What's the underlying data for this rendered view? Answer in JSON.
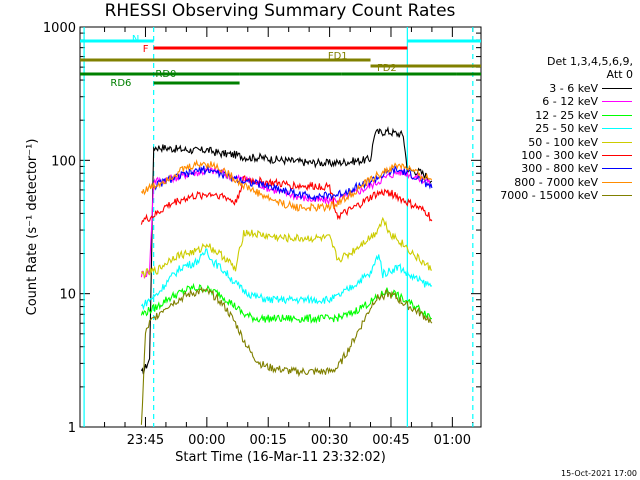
{
  "chart_data": {
    "type": "line",
    "title": "RHESSI Observing Summary Count Rates",
    "xlabel": "Start Time (16-Mar-11 23:32:02)",
    "ylabel": "Count Rate (s⁻¹ detector⁻¹)",
    "yscale": "log",
    "ylim": [
      1,
      1000
    ],
    "xlim_minutes_from_2332": [
      -3,
      95
    ],
    "y_ticks": [
      "1",
      "10",
      "100",
      "1000"
    ],
    "x_ticks": [
      {
        "label": "23:45",
        "t": 13
      },
      {
        "label": "00:00",
        "t": 28
      },
      {
        "label": "00:15",
        "t": 43
      },
      {
        "label": "00:30",
        "t": 58
      },
      {
        "label": "00:45",
        "t": 73
      },
      {
        "label": "01:00",
        "t": 88
      }
    ],
    "legend_header": "Det 1,3,4,5,6,9,\nAtt 0",
    "series": [
      {
        "name": "3 - 6 keV",
        "color": "#000000",
        "points": [
          [
            12,
            2.5
          ],
          [
            13,
            2.8
          ],
          [
            14,
            3.2
          ],
          [
            15,
            125
          ],
          [
            17,
            125
          ],
          [
            20,
            122
          ],
          [
            23,
            120
          ],
          [
            26,
            118
          ],
          [
            28,
            120
          ],
          [
            30,
            115
          ],
          [
            32,
            112
          ],
          [
            35,
            110
          ],
          [
            38,
            105
          ],
          [
            41,
            105
          ],
          [
            44,
            102
          ],
          [
            47,
            100
          ],
          [
            50,
            98
          ],
          [
            53,
            96
          ],
          [
            56,
            96
          ],
          [
            58,
            95
          ],
          [
            60,
            96
          ],
          [
            63,
            98
          ],
          [
            66,
            100
          ],
          [
            68,
            102
          ],
          [
            69,
            160
          ],
          [
            72,
            165
          ],
          [
            74,
            160
          ],
          [
            76,
            155
          ],
          [
            77,
            85
          ],
          [
            80,
            82
          ],
          [
            82,
            75
          ],
          [
            83,
            70
          ]
        ]
      },
      {
        "name": "6 - 12 keV",
        "color": "#ff00ff",
        "points": [
          [
            12,
            14
          ],
          [
            13,
            14
          ],
          [
            14,
            15
          ],
          [
            15,
            70
          ],
          [
            18,
            72
          ],
          [
            21,
            75
          ],
          [
            24,
            80
          ],
          [
            27,
            82
          ],
          [
            29,
            84
          ],
          [
            31,
            82
          ],
          [
            34,
            75
          ],
          [
            37,
            72
          ],
          [
            40,
            68
          ],
          [
            43,
            62
          ],
          [
            46,
            58
          ],
          [
            49,
            55
          ],
          [
            52,
            52
          ],
          [
            55,
            50
          ],
          [
            57,
            50
          ],
          [
            59,
            50
          ],
          [
            61,
            52
          ],
          [
            64,
            57
          ],
          [
            67,
            62
          ],
          [
            70,
            70
          ],
          [
            73,
            78
          ],
          [
            75,
            82
          ],
          [
            77,
            80
          ],
          [
            79,
            75
          ],
          [
            82,
            70
          ],
          [
            83,
            65
          ]
        ]
      },
      {
        "name": "12 - 25 keV",
        "color": "#00ff00",
        "points": [
          [
            12,
            7
          ],
          [
            14,
            7.5
          ],
          [
            16,
            8
          ],
          [
            18,
            9
          ],
          [
            21,
            10
          ],
          [
            24,
            11
          ],
          [
            27,
            11
          ],
          [
            29,
            10.5
          ],
          [
            31,
            10
          ],
          [
            33,
            9
          ],
          [
            35,
            8
          ],
          [
            37,
            7
          ],
          [
            40,
            6.5
          ],
          [
            43,
            6.5
          ],
          [
            47,
            6.5
          ],
          [
            51,
            6.5
          ],
          [
            55,
            6.5
          ],
          [
            58,
            6.5
          ],
          [
            60,
            6.6
          ],
          [
            63,
            7
          ],
          [
            66,
            8
          ],
          [
            69,
            9
          ],
          [
            72,
            10.5
          ],
          [
            74,
            10
          ],
          [
            76,
            9
          ],
          [
            79,
            8
          ],
          [
            82,
            7
          ],
          [
            83,
            6.5
          ]
        ]
      },
      {
        "name": "25 - 50 keV",
        "color": "#00ffff",
        "points": [
          [
            12,
            8
          ],
          [
            14,
            9
          ],
          [
            16,
            10
          ],
          [
            18,
            12
          ],
          [
            20,
            14
          ],
          [
            22,
            16
          ],
          [
            25,
            17
          ],
          [
            27,
            19
          ],
          [
            28,
            22
          ],
          [
            29,
            18
          ],
          [
            31,
            16
          ],
          [
            33,
            14
          ],
          [
            35,
            12
          ],
          [
            37,
            10.5
          ],
          [
            40,
            9.5
          ],
          [
            43,
            9
          ],
          [
            47,
            9
          ],
          [
            51,
            9
          ],
          [
            55,
            9
          ],
          [
            58,
            9
          ],
          [
            60,
            9.5
          ],
          [
            63,
            11
          ],
          [
            66,
            13
          ],
          [
            68,
            14
          ],
          [
            70,
            20
          ],
          [
            71,
            14
          ],
          [
            73,
            15
          ],
          [
            75,
            16
          ],
          [
            77,
            14
          ],
          [
            79,
            13
          ],
          [
            81,
            12
          ],
          [
            83,
            11.5
          ]
        ]
      },
      {
        "name": "50 - 100 keV",
        "color": "#cccc00",
        "points": [
          [
            12,
            14
          ],
          [
            14,
            14.5
          ],
          [
            16,
            15
          ],
          [
            18,
            17
          ],
          [
            20,
            19
          ],
          [
            23,
            20
          ],
          [
            26,
            21
          ],
          [
            28,
            24
          ],
          [
            29,
            22
          ],
          [
            31,
            20
          ],
          [
            33,
            18
          ],
          [
            35,
            15
          ],
          [
            37,
            29
          ],
          [
            40,
            28
          ],
          [
            43,
            27
          ],
          [
            47,
            26
          ],
          [
            51,
            26
          ],
          [
            55,
            26
          ],
          [
            58,
            26
          ],
          [
            60,
            18
          ],
          [
            63,
            20
          ],
          [
            66,
            24
          ],
          [
            69,
            28
          ],
          [
            71,
            36
          ],
          [
            73,
            28
          ],
          [
            75,
            25
          ],
          [
            77,
            22
          ],
          [
            79,
            19
          ],
          [
            81,
            17
          ],
          [
            83,
            15
          ]
        ]
      },
      {
        "name": "100 - 300 keV",
        "color": "#ff0000",
        "points": [
          [
            12,
            35
          ],
          [
            14,
            37
          ],
          [
            16,
            40
          ],
          [
            18,
            45
          ],
          [
            21,
            50
          ],
          [
            24,
            53
          ],
          [
            27,
            55
          ],
          [
            29,
            56
          ],
          [
            31,
            55
          ],
          [
            33,
            52
          ],
          [
            35,
            48
          ],
          [
            37,
            72
          ],
          [
            40,
            70
          ],
          [
            43,
            68
          ],
          [
            47,
            66
          ],
          [
            51,
            64
          ],
          [
            55,
            64
          ],
          [
            58,
            64
          ],
          [
            60,
            38
          ],
          [
            63,
            42
          ],
          [
            66,
            48
          ],
          [
            69,
            55
          ],
          [
            72,
            58
          ],
          [
            74,
            55
          ],
          [
            76,
            50
          ],
          [
            79,
            45
          ],
          [
            82,
            40
          ],
          [
            83,
            35
          ]
        ]
      },
      {
        "name": "300 - 800 keV",
        "color": "#0000ff",
        "points": [
          [
            15,
            64
          ],
          [
            17,
            68
          ],
          [
            19,
            72
          ],
          [
            22,
            77
          ],
          [
            25,
            82
          ],
          [
            27,
            86
          ],
          [
            29,
            84
          ],
          [
            31,
            80
          ],
          [
            33,
            76
          ],
          [
            36,
            72
          ],
          [
            39,
            68
          ],
          [
            42,
            65
          ],
          [
            45,
            62
          ],
          [
            48,
            58
          ],
          [
            51,
            55
          ],
          [
            54,
            54
          ],
          [
            57,
            54
          ],
          [
            60,
            55
          ],
          [
            63,
            60
          ],
          [
            66,
            66
          ],
          [
            69,
            72
          ],
          [
            72,
            80
          ],
          [
            74,
            84
          ],
          [
            76,
            82
          ],
          [
            78,
            78
          ],
          [
            80,
            72
          ],
          [
            82,
            66
          ],
          [
            83,
            62
          ]
        ]
      },
      {
        "name": "800 - 7000 keV",
        "color": "#ff8c00",
        "points": [
          [
            12,
            58
          ],
          [
            14,
            62
          ],
          [
            16,
            66
          ],
          [
            18,
            72
          ],
          [
            20,
            78
          ],
          [
            22,
            85
          ],
          [
            25,
            92
          ],
          [
            27,
            95
          ],
          [
            29,
            93
          ],
          [
            31,
            88
          ],
          [
            33,
            80
          ],
          [
            35,
            72
          ],
          [
            37,
            65
          ],
          [
            40,
            58
          ],
          [
            43,
            52
          ],
          [
            46,
            48
          ],
          [
            49,
            45
          ],
          [
            52,
            44
          ],
          [
            55,
            44
          ],
          [
            58,
            45
          ],
          [
            61,
            50
          ],
          [
            64,
            58
          ],
          [
            67,
            68
          ],
          [
            70,
            78
          ],
          [
            73,
            87
          ],
          [
            75,
            92
          ],
          [
            77,
            88
          ],
          [
            79,
            80
          ],
          [
            81,
            75
          ],
          [
            83,
            72
          ]
        ]
      },
      {
        "name": "7000 - 15000 keV",
        "color": "#808000",
        "points": [
          [
            12,
            1
          ],
          [
            13,
            5
          ],
          [
            14,
            6
          ],
          [
            16,
            7
          ],
          [
            18,
            8
          ],
          [
            21,
            9
          ],
          [
            24,
            10
          ],
          [
            27,
            10.5
          ],
          [
            29,
            10
          ],
          [
            31,
            9
          ],
          [
            33,
            7.5
          ],
          [
            35,
            6
          ],
          [
            37,
            4.5
          ],
          [
            39,
            3.5
          ],
          [
            41,
            3
          ],
          [
            43,
            2.8
          ],
          [
            46,
            2.7
          ],
          [
            49,
            2.6
          ],
          [
            52,
            2.6
          ],
          [
            55,
            2.6
          ],
          [
            58,
            2.6
          ],
          [
            60,
            2.8
          ],
          [
            63,
            4
          ],
          [
            66,
            6
          ],
          [
            69,
            9
          ],
          [
            72,
            10
          ],
          [
            74,
            9.5
          ],
          [
            76,
            8.5
          ],
          [
            79,
            7.5
          ],
          [
            82,
            6.5
          ],
          [
            83,
            6
          ]
        ]
      }
    ],
    "flag_bars": [
      {
        "label": "N",
        "color": "#00ffff",
        "y": 41,
        "segments": [
          [
            -3,
            15
          ],
          [
            77,
            95
          ]
        ]
      },
      {
        "label": "F",
        "color": "#ff0000",
        "y": 48,
        "segments": [
          [
            15,
            77
          ]
        ]
      },
      {
        "label": "FD1",
        "color": "#808000",
        "y": 60,
        "segments": [
          [
            -3,
            68
          ]
        ]
      },
      {
        "label": "FD2",
        "color": "#808000",
        "y": 66,
        "segments": [
          [
            68,
            95
          ]
        ]
      },
      {
        "label": "RD0",
        "color": "#008000",
        "y": 74,
        "segments": [
          [
            -3,
            36
          ],
          [
            36,
            61
          ],
          [
            61,
            89
          ],
          [
            89,
            95
          ]
        ]
      },
      {
        "label": "RD6",
        "color": "#008000",
        "y": 83,
        "segments": [
          [
            15,
            36
          ]
        ]
      }
    ],
    "vertical_lines": [
      {
        "t": -2,
        "color": "#00ffff",
        "dash": false
      },
      {
        "t": 15,
        "color": "#00ffff",
        "dash": true
      },
      {
        "t": 77,
        "color": "#00ffff",
        "dash": false
      },
      {
        "t": 93,
        "color": "#00ffff",
        "dash": true
      }
    ]
  },
  "footer": "15-Oct-2021 17:00"
}
